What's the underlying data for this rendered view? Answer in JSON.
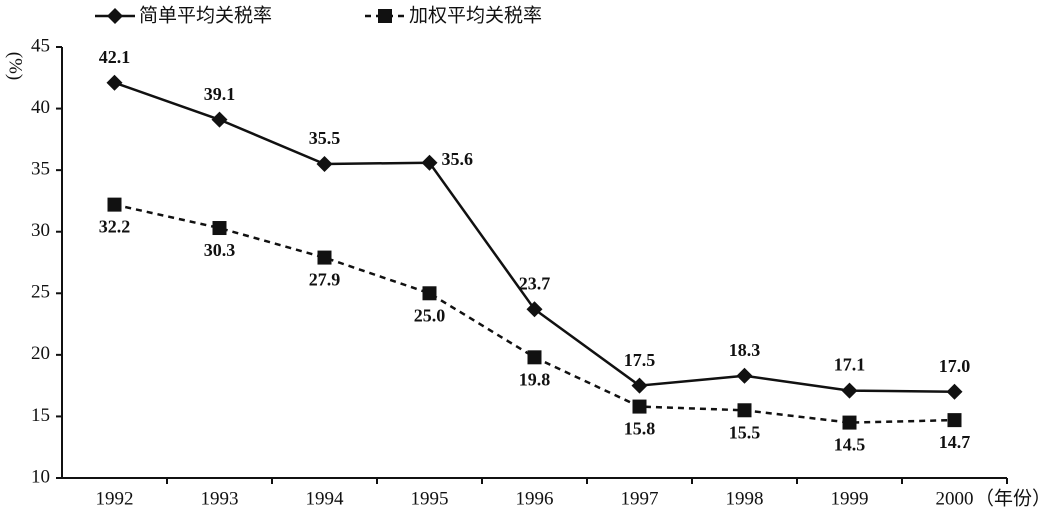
{
  "chart_data": {
    "type": "line",
    "y_label": "(%)",
    "x_label": "（年份）",
    "categories": [
      "1992",
      "1993",
      "1994",
      "1995",
      "1996",
      "1997",
      "1998",
      "1999",
      "2000"
    ],
    "series": [
      {
        "name": "简单平均关税率",
        "color": "#111111",
        "marker": "diamond",
        "dash": false,
        "values": [
          42.1,
          39.1,
          35.5,
          35.6,
          23.7,
          17.5,
          18.3,
          17.1,
          17.0
        ],
        "value_labels": [
          "42.1",
          "39.1",
          "35.5",
          "35.6",
          "23.7",
          "17.5",
          "18.3",
          "17.1",
          "17.0"
        ]
      },
      {
        "name": "加权平均关税率",
        "color": "#111111",
        "marker": "square",
        "dash": true,
        "values": [
          32.2,
          30.3,
          27.9,
          25.0,
          19.8,
          15.8,
          15.5,
          14.5,
          14.7
        ],
        "value_labels": [
          "32.2",
          "30.3",
          "27.9",
          "25.0",
          "19.8",
          "15.8",
          "15.5",
          "14.5",
          "14.7"
        ]
      }
    ],
    "ylim": [
      10,
      45
    ],
    "yticks": [
      10,
      15,
      20,
      25,
      30,
      35,
      40,
      45
    ],
    "grid": false
  }
}
